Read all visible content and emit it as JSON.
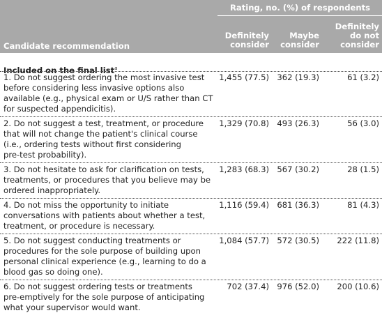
{
  "header": {
    "group_title": "Rating, no. (%) of respondents",
    "columns": [
      [
        "Candidate recommendation"
      ],
      [
        "Definitely",
        "consider"
      ],
      [
        "Maybe",
        "consider"
      ],
      [
        "Definitely",
        "do not",
        "consider"
      ]
    ]
  },
  "section": {
    "title": "Included on the final list",
    "footnote_marker": "a"
  },
  "table": {
    "rows": [
      [
        [
          "1. Do not suggest ordering the most invasive test",
          "before considering less invasive options also",
          "available (e.g., physical exam or U/S rather than CT",
          "for suspected appendicitis)."
        ],
        "1,455 (77.5)",
        "362 (19.3)",
        "61 (3.2)"
      ],
      [
        [
          "2. Do not suggest a test, treatment, or procedure",
          "that will not change the patient's clinical course",
          "(i.e., ordering tests without first considering",
          "pre-test probability)."
        ],
        "1,329 (70.8)",
        "493 (26.3)",
        "56 (3.0)"
      ],
      [
        [
          "3. Do not hesitate to ask for clarification on tests,",
          "treatments, or procedures that you believe may be",
          "ordered inappropriately."
        ],
        "1,283 (68.3)",
        "567 (30.2)",
        "28 (1.5)"
      ],
      [
        [
          "4. Do not miss the opportunity to initiate",
          "conversations with patients about whether a test,",
          "treatment, or procedure is necessary."
        ],
        "1,116 (59.4)",
        "681 (36.3)",
        "81 (4.3)"
      ],
      [
        [
          "5. Do not suggest conducting treatments or",
          "procedures for the sole purpose of building upon",
          "personal clinical experience (e.g., learning to do a",
          "blood gas so doing one)."
        ],
        "1,084 (57.7)",
        "572 (30.5)",
        "222 (11.8)"
      ],
      [
        [
          "6. Do not suggest ordering tests or treatments",
          "pre-emptively for the sole purpose of anticipating",
          "what your supervisor would want."
        ],
        "702 (37.4)",
        "976 (52.0)",
        "200 (10.6)"
      ]
    ]
  }
}
